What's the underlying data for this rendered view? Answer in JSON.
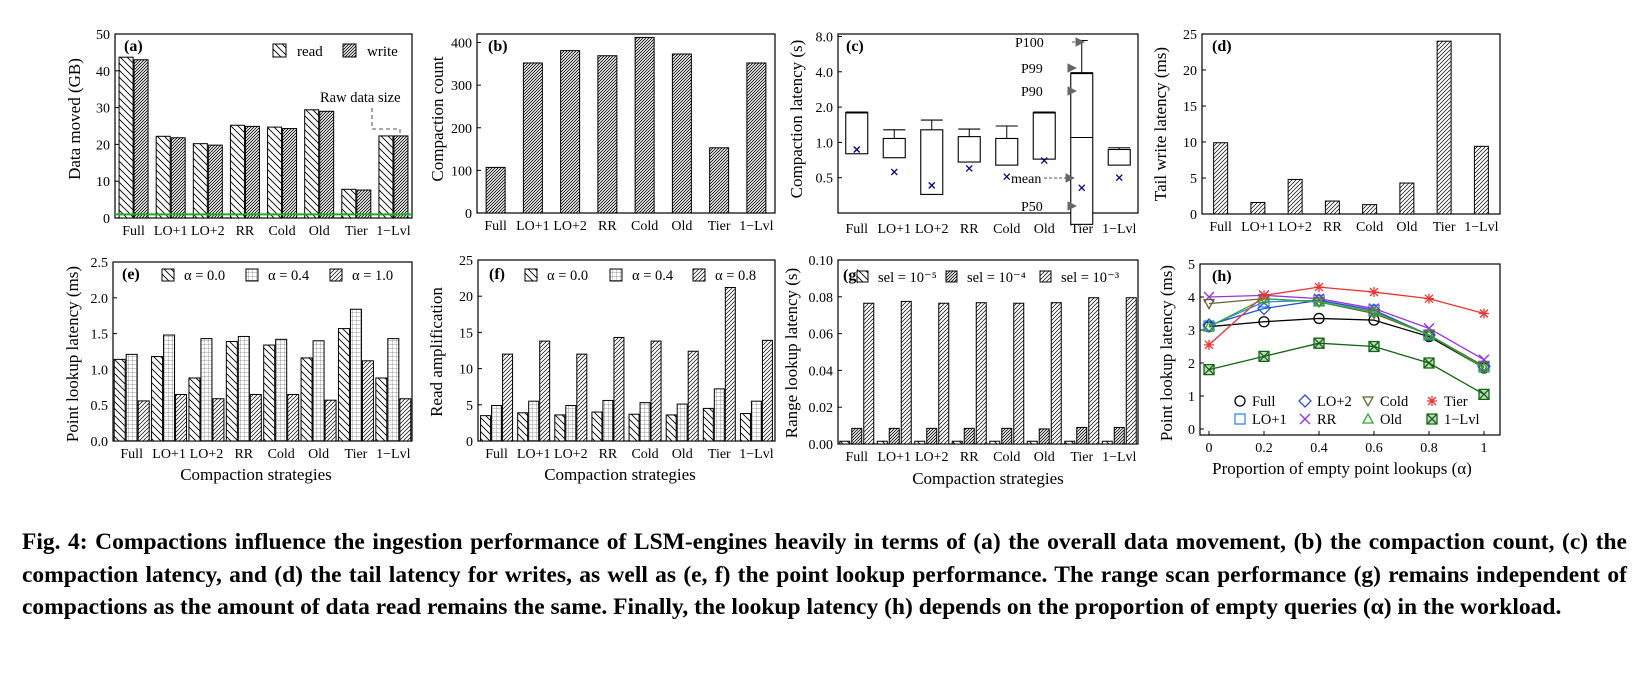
{
  "caption": "Fig. 4: Compactions influence the ingestion performance of LSM-engines heavily in terms of (a) the overall data movement, (b) the compaction count, (c) the compaction latency, and (d) the tail latency for writes, as well as (e, f) the point lookup performance. The range scan performance (g) remains independent of compactions as the amount of data read remains the same. Finally, the lookup latency (h) depends on the proportion of empty queries (α) in the workload.",
  "colors": {
    "line_green": "#22aa22",
    "mean_marker": "#00008b",
    "tier": "#ee3333",
    "full": "#000000",
    "lo1": "#3388ee",
    "lo2": "#2255cc",
    "rr": "#9933dd",
    "cold": "#666633",
    "old": "#33aa33",
    "lvl1": "#116611"
  },
  "chart_data": [
    {
      "id": "a",
      "panel_label": "(a)",
      "type": "bar",
      "ylabel": "Data moved (GB)",
      "xlabel": "",
      "ylim": [
        0,
        50
      ],
      "yticks": [
        0,
        10,
        20,
        30,
        40,
        50
      ],
      "categories": [
        "Full",
        "LO+1",
        "LO+2",
        "RR",
        "Cold",
        "Old",
        "Tier",
        "1−Lvl"
      ],
      "series": [
        {
          "name": "read",
          "pattern": "back",
          "values": [
            43.7,
            22.2,
            20.2,
            25.2,
            24.7,
            29.4,
            7.8,
            22.3
          ]
        },
        {
          "name": "write",
          "pattern": "dense",
          "values": [
            43.0,
            21.8,
            19.8,
            24.9,
            24.3,
            29.0,
            7.6,
            22.3
          ]
        }
      ],
      "reference_line": {
        "value": 1.0
      },
      "annotation": "Raw data size"
    },
    {
      "id": "b",
      "panel_label": "(b)",
      "type": "bar",
      "ylabel": "Compaction count",
      "xlabel": "",
      "ylim": [
        0,
        420
      ],
      "yticks": [
        0,
        100,
        200,
        300,
        400
      ],
      "categories": [
        "Full",
        "LO+1",
        "LO+2",
        "RR",
        "Cold",
        "Old",
        "Tier",
        "1−Lvl"
      ],
      "series": [
        {
          "pattern": "dense",
          "values": [
            107,
            352,
            381,
            369,
            412,
            373,
            153,
            352
          ]
        }
      ]
    },
    {
      "id": "c",
      "panel_label": "(c)",
      "type": "box",
      "ylabel": "Compaction latency (s)",
      "xlabel": "",
      "yscale": "log",
      "ytick_labels": [
        "0.5",
        "1.0",
        "2.0",
        "4.0",
        "8.0"
      ],
      "ytick_values": [
        0.5,
        1,
        2,
        4,
        8
      ],
      "categories": [
        "Full",
        "LO+1",
        "LO+2",
        "RR",
        "Cold",
        "Old",
        "Tier",
        "1−Lvl"
      ],
      "boxes": [
        {
          "p50": 0.8,
          "p90": 1.8,
          "p99": 1.8,
          "p100": 1.8,
          "mean": 0.87
        },
        {
          "p50": 0.74,
          "p90": 1.08,
          "p99": 1.28,
          "p100": 1.28,
          "mean": 0.56
        },
        {
          "p50": 0.36,
          "p90": 1.28,
          "p99": 1.55,
          "p100": 1.55,
          "mean": 0.43
        },
        {
          "p50": 0.68,
          "p90": 1.12,
          "p99": 1.3,
          "p100": 1.3,
          "mean": 0.6
        },
        {
          "p50": 0.64,
          "p90": 1.08,
          "p99": 1.38,
          "p100": 1.38,
          "mean": 0.51
        },
        {
          "p50": 0.72,
          "p90": 1.8,
          "p99": 1.8,
          "p100": 1.8,
          "mean": 0.7
        },
        {
          "p50": 0.2,
          "p90": 3.9,
          "p99": 3.9,
          "p100": 7.4,
          "mean": 0.41
        },
        {
          "p50": 0.64,
          "p90": 0.87,
          "p99": 0.9,
          "p100": 0.9,
          "mean": 0.5
        }
      ],
      "annotations": [
        "P100",
        "P99",
        "P90",
        "mean",
        "P50"
      ]
    },
    {
      "id": "d",
      "panel_label": "(d)",
      "type": "bar",
      "ylabel": "Tail write latency (ms)",
      "xlabel": "",
      "ylim": [
        0,
        25
      ],
      "yticks": [
        0,
        5,
        10,
        15,
        20,
        25
      ],
      "categories": [
        "Full",
        "LO+1",
        "LO+2",
        "RR",
        "Cold",
        "Old",
        "Tier",
        "1−Lvl"
      ],
      "series": [
        {
          "pattern": "fwd",
          "values": [
            9.9,
            1.6,
            4.8,
            1.8,
            1.3,
            4.3,
            24.0,
            9.4
          ]
        }
      ]
    },
    {
      "id": "e",
      "panel_label": "(e)",
      "type": "bar",
      "ylabel": "Point lookup latency (ms)",
      "xlabel": "Compaction strategies",
      "ylim": [
        0,
        2.5
      ],
      "yticks": [
        0,
        0.5,
        1.0,
        1.5,
        2.0,
        2.5
      ],
      "ytick_labels": [
        "0.0",
        "0.5",
        "1.0",
        "1.5",
        "2.0",
        "2.5"
      ],
      "categories": [
        "Full",
        "LO+1",
        "LO+2",
        "RR",
        "Cold",
        "Old",
        "Tier",
        "1−Lvl"
      ],
      "series": [
        {
          "name": "α = 0.0",
          "pattern": "back",
          "values": [
            1.14,
            1.18,
            0.88,
            1.39,
            1.34,
            1.16,
            1.57,
            0.88
          ]
        },
        {
          "name": "α = 0.4",
          "pattern": "grid",
          "values": [
            1.21,
            1.48,
            1.43,
            1.46,
            1.42,
            1.4,
            1.84,
            1.43
          ]
        },
        {
          "name": "α = 1.0",
          "pattern": "fwd",
          "values": [
            0.56,
            0.65,
            0.59,
            0.65,
            0.65,
            0.57,
            1.12,
            0.59
          ]
        }
      ]
    },
    {
      "id": "f",
      "panel_label": "(f)",
      "type": "bar",
      "ylabel": "Read amplification",
      "xlabel": "Compaction strategies",
      "ylim": [
        0,
        25
      ],
      "yticks": [
        0,
        5,
        10,
        15,
        20,
        25
      ],
      "categories": [
        "Full",
        "LO+1",
        "LO+2",
        "RR",
        "Cold",
        "Old",
        "Tier",
        "1−Lvl"
      ],
      "series": [
        {
          "name": "α = 0.0",
          "pattern": "back",
          "values": [
            3.5,
            3.9,
            3.6,
            4.0,
            3.7,
            3.6,
            4.5,
            3.8
          ]
        },
        {
          "name": "α = 0.4",
          "pattern": "grid",
          "values": [
            4.9,
            5.5,
            4.9,
            5.6,
            5.3,
            5.1,
            7.2,
            5.5
          ]
        },
        {
          "name": "α = 0.8",
          "pattern": "fwd",
          "values": [
            12.0,
            13.8,
            12.0,
            14.3,
            13.8,
            12.4,
            21.2,
            13.9
          ]
        }
      ]
    },
    {
      "id": "g",
      "panel_label": "(g)",
      "type": "bar",
      "ylabel": "Range lookup latency (s)",
      "xlabel": "Compaction strategies",
      "ylim": [
        0,
        0.1
      ],
      "yticks": [
        0,
        0.02,
        0.04,
        0.06,
        0.08,
        0.1
      ],
      "ytick_labels": [
        "0.00",
        "0.02",
        "0.04",
        "0.06",
        "0.08",
        "0.10"
      ],
      "categories": [
        "Full",
        "LO+1",
        "LO+2",
        "RR",
        "Cold",
        "Old",
        "Tier",
        "1−Lvl"
      ],
      "series": [
        {
          "name": "sel = 10⁻⁵",
          "pattern": "back",
          "values": [
            0.0015,
            0.0015,
            0.0015,
            0.0015,
            0.0015,
            0.0015,
            0.0015,
            0.0015
          ]
        },
        {
          "name": "sel = 10⁻⁴",
          "pattern": "dense",
          "values": [
            0.0085,
            0.0085,
            0.0085,
            0.0085,
            0.0085,
            0.0082,
            0.009,
            0.009
          ]
        },
        {
          "name": "sel = 10⁻³",
          "pattern": "fwd",
          "values": [
            0.0765,
            0.0775,
            0.0765,
            0.0768,
            0.0765,
            0.0768,
            0.0795,
            0.0795
          ]
        }
      ]
    },
    {
      "id": "h",
      "panel_label": "(h)",
      "type": "line",
      "ylabel": "Point lookup latency (ms)",
      "xlabel": "Proportion of empty point lookups (α)",
      "ylim": [
        0,
        5
      ],
      "xlim": [
        0,
        1
      ],
      "yticks": [
        0,
        1,
        2,
        3,
        4,
        5
      ],
      "xticks": [
        0,
        0.2,
        0.4,
        0.6,
        0.8,
        1
      ],
      "xtick_labels": [
        "0",
        "0.2",
        "0.4",
        "0.6",
        "0.8",
        "1"
      ],
      "x": [
        0,
        0.2,
        0.4,
        0.6,
        0.8,
        1.0
      ],
      "series": [
        {
          "name": "Full",
          "marker": "circle",
          "color": "#000000",
          "values": [
            3.1,
            3.25,
            3.35,
            3.3,
            2.8,
            1.85
          ]
        },
        {
          "name": "LO+1",
          "marker": "square",
          "color": "#3388ee",
          "values": [
            3.12,
            3.85,
            3.9,
            3.6,
            2.85,
            1.9
          ]
        },
        {
          "name": "LO+2",
          "marker": "diamond",
          "color": "#2255cc",
          "values": [
            3.15,
            3.65,
            3.9,
            3.6,
            2.85,
            1.9
          ]
        },
        {
          "name": "RR",
          "marker": "x",
          "color": "#9933dd",
          "values": [
            4.0,
            4.05,
            3.95,
            3.65,
            3.05,
            2.1
          ]
        },
        {
          "name": "Cold",
          "marker": "tri-down",
          "color": "#666633",
          "values": [
            3.8,
            3.95,
            3.85,
            3.5,
            2.85,
            1.9
          ]
        },
        {
          "name": "Old",
          "marker": "tri-up",
          "color": "#33aa33",
          "values": [
            3.1,
            3.95,
            3.85,
            3.55,
            2.85,
            1.85
          ]
        },
        {
          "name": "Tier",
          "marker": "star",
          "color": "#ee3333",
          "values": [
            2.55,
            4.05,
            4.3,
            4.15,
            3.95,
            3.5
          ]
        },
        {
          "name": "1−Lvl",
          "marker": "box-x",
          "color": "#116611",
          "values": [
            1.8,
            2.2,
            2.6,
            2.5,
            2.0,
            1.05
          ]
        }
      ]
    }
  ]
}
